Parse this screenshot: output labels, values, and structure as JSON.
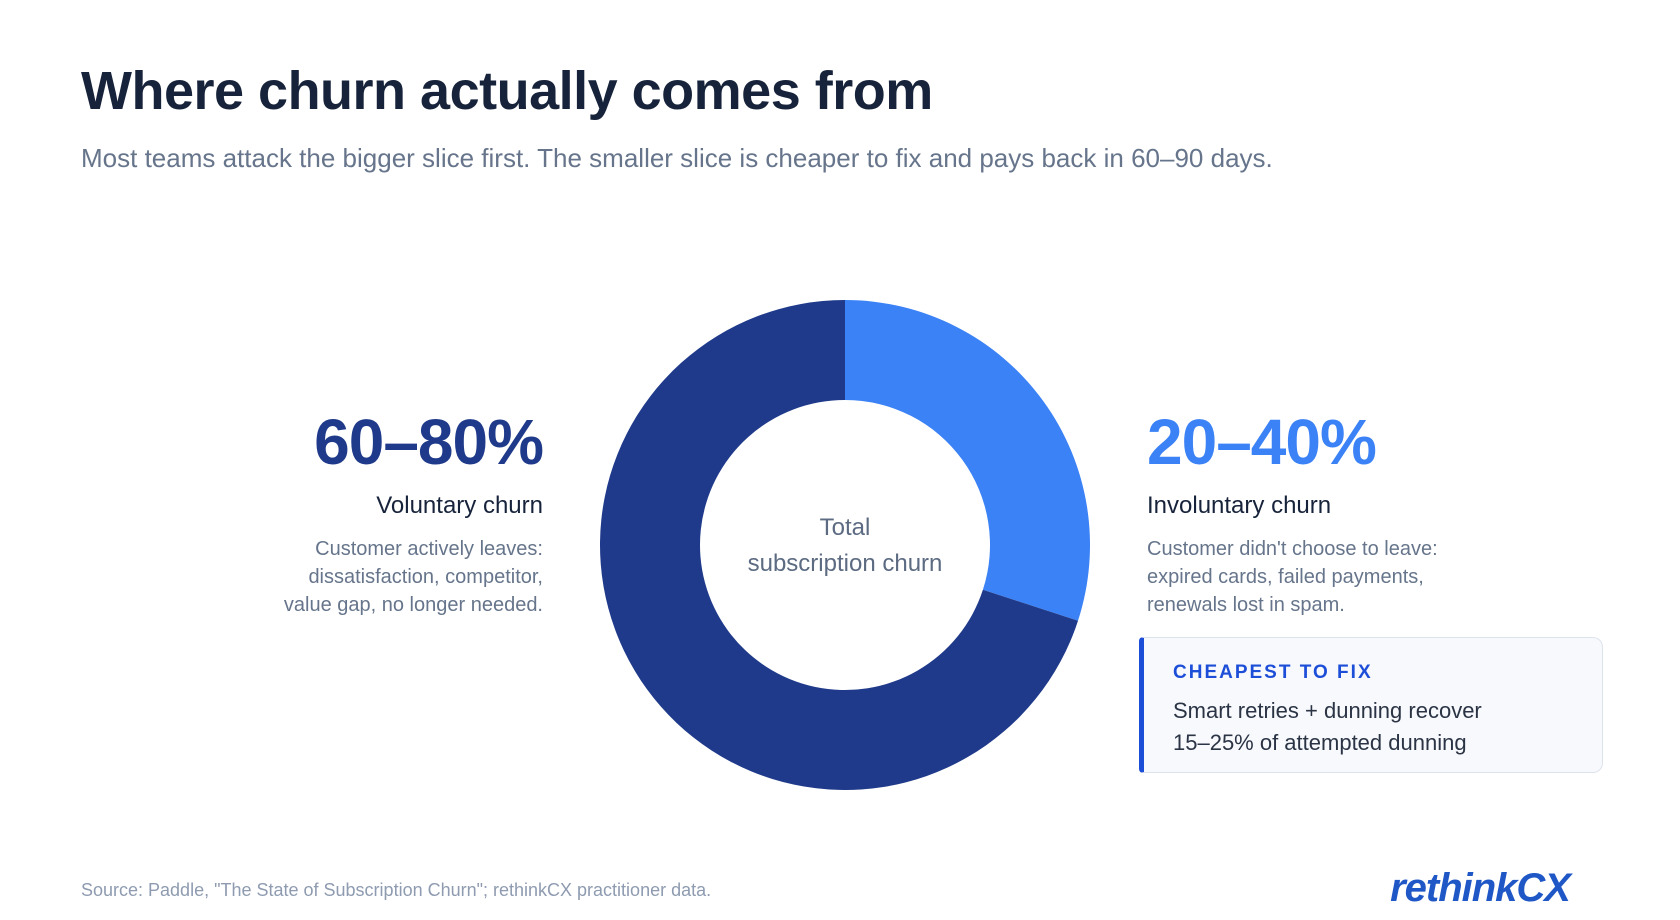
{
  "title": "Where churn actually comes from",
  "subtitle": "Most teams attack the bigger slice first. The smaller slice is cheaper to fix and pays back in 60–90 days.",
  "colors": {
    "voluntary": "#1f3a8a",
    "involuntary": "#3b82f6",
    "accent": "#1d4ed8"
  },
  "chart_data": {
    "type": "pie",
    "variant": "donut",
    "center_label_lines": [
      "Total",
      "subscription churn"
    ],
    "slices": [
      {
        "label": "Involuntary churn",
        "value": 30,
        "range_label": "20–40%",
        "color": "#3b82f6"
      },
      {
        "label": "Voluntary churn",
        "value": 70,
        "range_label": "60–80%",
        "color": "#1f3a8a"
      }
    ],
    "legend": "none"
  },
  "voluntary": {
    "pct": "60–80%",
    "label": "Voluntary churn",
    "desc_lines": [
      "Customer actively leaves:",
      "dissatisfaction, competitor,",
      "value gap, no longer needed."
    ]
  },
  "involuntary": {
    "pct": "20–40%",
    "label": "Involuntary churn",
    "desc_lines": [
      "Customer didn't choose to leave:",
      "expired cards, failed payments,",
      "renewals lost in spam."
    ]
  },
  "callout": {
    "heading": "CHEAPEST TO FIX",
    "text_lines": [
      "Smart retries + dunning recover",
      "15–25% of attempted dunning"
    ]
  },
  "footer": {
    "source": "Source: Paddle, \"The State of Subscription Churn\"; rethinkCX practitioner data.",
    "logo_prefix": "rethink",
    "logo_suffix": "CX"
  }
}
